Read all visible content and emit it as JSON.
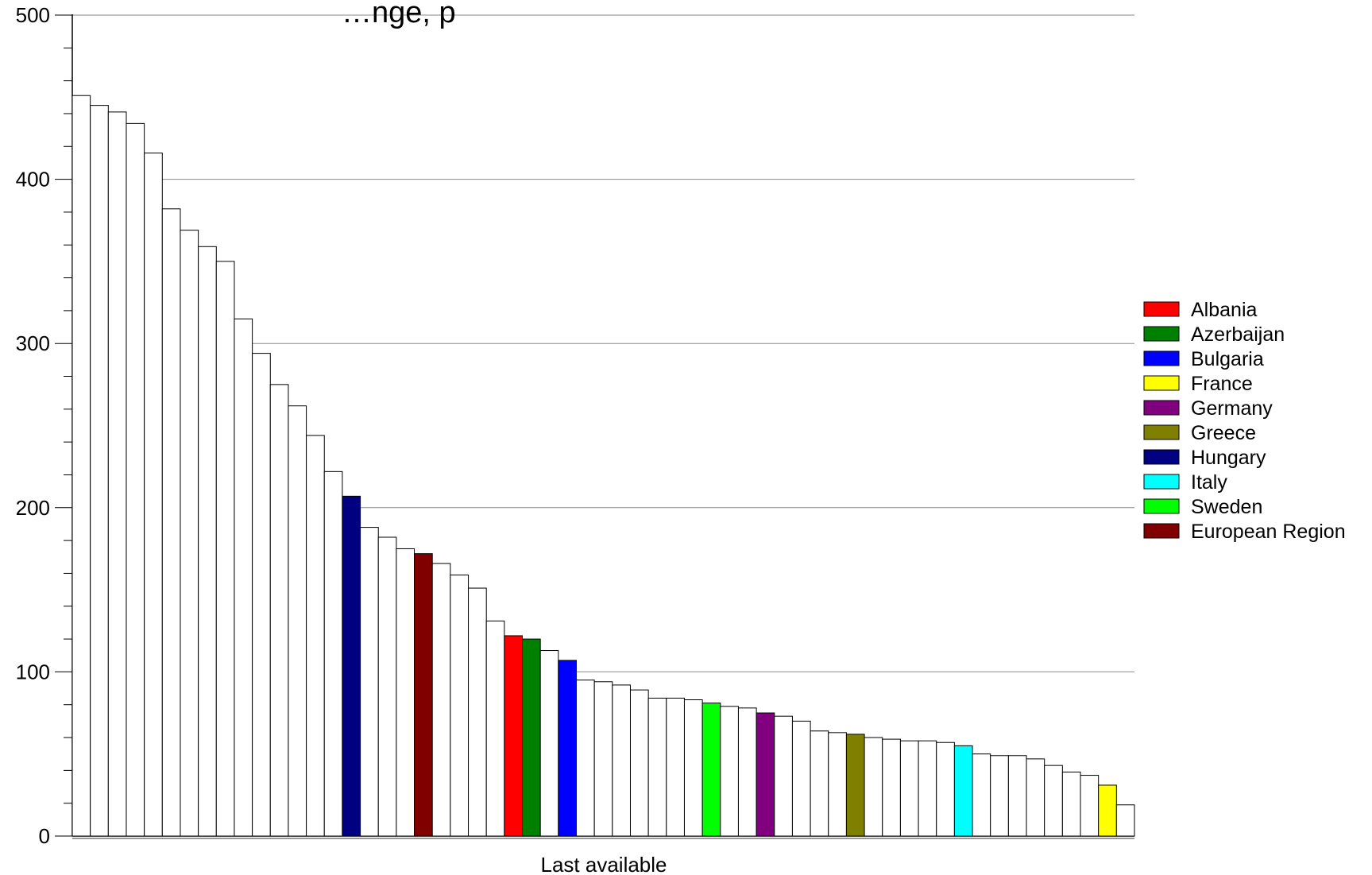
{
  "chart_data": {
    "type": "bar",
    "title": "…nge, p",
    "xlabel": "Last available",
    "ylabel": "",
    "ylim": [
      0,
      500
    ],
    "yticks": [
      0,
      100,
      200,
      300,
      400,
      500
    ],
    "grid": true,
    "legend_position": "right",
    "values": [
      451,
      445,
      441,
      434,
      416,
      382,
      369,
      359,
      350,
      315,
      294,
      275,
      262,
      244,
      222,
      207,
      188,
      182,
      175,
      172,
      166,
      159,
      151,
      131,
      122,
      120,
      113,
      107,
      95,
      94,
      92,
      89,
      84,
      84,
      83,
      81,
      79,
      78,
      75,
      73,
      70,
      64,
      63,
      62,
      60,
      59,
      58,
      58,
      57,
      55,
      50,
      49,
      49,
      47,
      43,
      39,
      37,
      31,
      19
    ],
    "highlight_series": [
      {
        "name": "Albania",
        "color": "#ff0000",
        "index": 24
      },
      {
        "name": "Azerbaijan",
        "color": "#008000",
        "index": 25
      },
      {
        "name": "Bulgaria",
        "color": "#0000ff",
        "index": 27
      },
      {
        "name": "France",
        "color": "#ffff00",
        "index": 57
      },
      {
        "name": "Germany",
        "color": "#800080",
        "index": 38
      },
      {
        "name": "Greece",
        "color": "#808000",
        "index": 43
      },
      {
        "name": "Hungary",
        "color": "#000080",
        "index": 15
      },
      {
        "name": "Italy",
        "color": "#00ffff",
        "index": 49
      },
      {
        "name": "Sweden",
        "color": "#00ff00",
        "index": 35
      },
      {
        "name": "European Region",
        "color": "#800000",
        "index": 19
      }
    ],
    "default_bar_color": "#ffffff"
  }
}
